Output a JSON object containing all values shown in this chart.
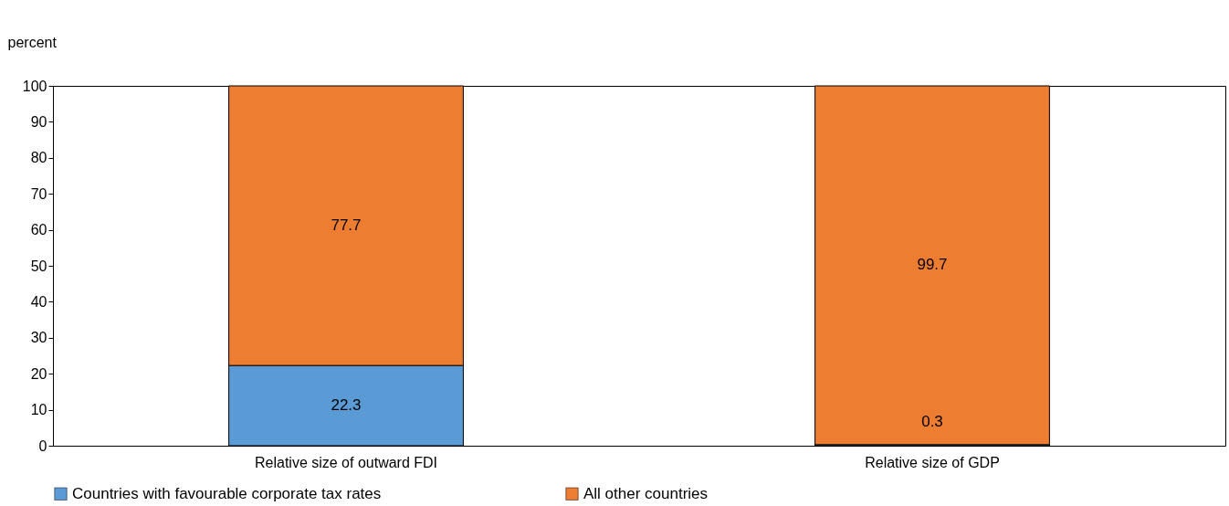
{
  "chart_data": {
    "type": "bar",
    "stacked": true,
    "ylabel": "percent",
    "categories": [
      "Relative size of outward FDI",
      "Relative size of GDP"
    ],
    "series": [
      {
        "name": "Countries with favourable corporate tax rates",
        "color": "#5b9bd5",
        "values": [
          22.3,
          0.3
        ]
      },
      {
        "name": "All other countries",
        "color": "#ed7d31",
        "values": [
          77.7,
          99.7
        ]
      }
    ],
    "ylim": [
      0,
      100
    ],
    "yticks": [
      0,
      10,
      20,
      30,
      40,
      50,
      60,
      70,
      80,
      90,
      100
    ],
    "data_labels": true,
    "legend": "bottom",
    "grid": false
  }
}
